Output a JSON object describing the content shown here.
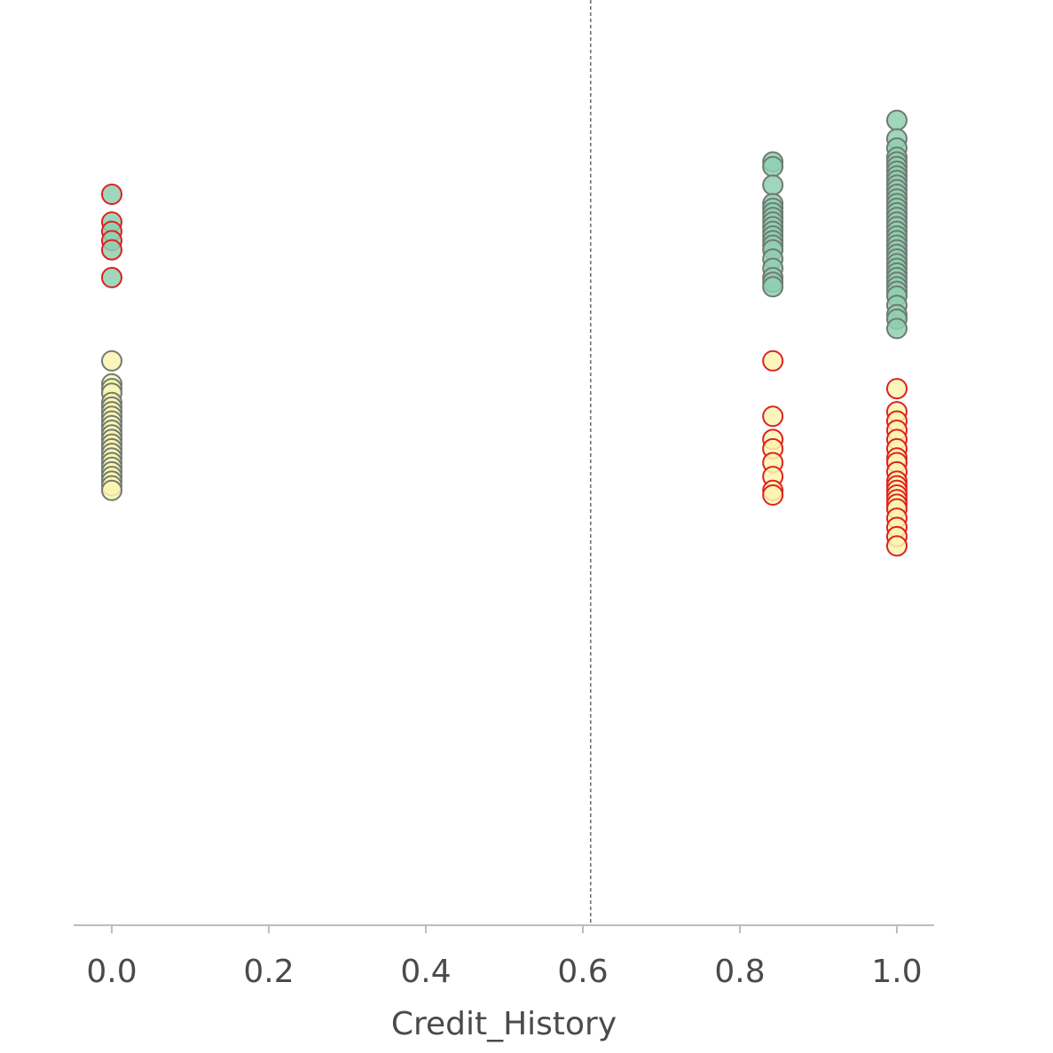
{
  "chart_data": {
    "type": "scatter",
    "xlabel": "Credit_History",
    "xlim": [
      -0.05,
      1.05
    ],
    "x_ticks": [
      {
        "value": 0.0,
        "label": "0.0"
      },
      {
        "value": 0.2,
        "label": "0.2"
      },
      {
        "value": 0.4,
        "label": "0.4"
      },
      {
        "value": 0.6,
        "label": "0.6"
      },
      {
        "value": 0.8,
        "label": "0.8"
      },
      {
        "value": 1.0,
        "label": "1.0"
      }
    ],
    "y_axis_shown": false,
    "ylim": [
      0,
      1
    ],
    "grid": false,
    "reference_line": {
      "x": 0.61,
      "style": "dashed",
      "color": "#444444"
    },
    "colors": {
      "green_fill": "#8fcfb0",
      "yellow_fill": "#fbf5b0",
      "gray_edge": "#6f7a72",
      "red_edge": "#dd2222"
    },
    "series": [
      {
        "fill": "green",
        "edge": "red",
        "points": [
          [
            0.0,
            0.79
          ],
          [
            0.0,
            0.76
          ],
          [
            0.0,
            0.75
          ],
          [
            0.0,
            0.74
          ],
          [
            0.0,
            0.73
          ],
          [
            0.0,
            0.7
          ]
        ]
      },
      {
        "fill": "yellow",
        "edge": "gray",
        "points": [
          [
            0.0,
            0.61
          ],
          [
            0.0,
            0.585
          ],
          [
            0.0,
            0.58
          ],
          [
            0.0,
            0.575
          ],
          [
            0.0,
            0.565
          ],
          [
            0.0,
            0.56
          ],
          [
            0.0,
            0.555
          ],
          [
            0.0,
            0.55
          ],
          [
            0.0,
            0.545
          ],
          [
            0.0,
            0.54
          ],
          [
            0.0,
            0.535
          ],
          [
            0.0,
            0.53
          ],
          [
            0.0,
            0.525
          ],
          [
            0.0,
            0.52
          ],
          [
            0.0,
            0.515
          ],
          [
            0.0,
            0.51
          ],
          [
            0.0,
            0.505
          ],
          [
            0.0,
            0.5
          ],
          [
            0.0,
            0.495
          ],
          [
            0.0,
            0.49
          ],
          [
            0.0,
            0.485
          ],
          [
            0.0,
            0.48
          ],
          [
            0.0,
            0.475
          ],
          [
            0.0,
            0.47
          ]
        ]
      },
      {
        "fill": "green",
        "edge": "gray",
        "points": [
          [
            0.842,
            0.825
          ],
          [
            0.842,
            0.82
          ],
          [
            0.842,
            0.8
          ],
          [
            0.842,
            0.78
          ],
          [
            0.842,
            0.775
          ],
          [
            0.842,
            0.77
          ],
          [
            0.842,
            0.765
          ],
          [
            0.842,
            0.76
          ],
          [
            0.842,
            0.755
          ],
          [
            0.842,
            0.75
          ],
          [
            0.842,
            0.745
          ],
          [
            0.842,
            0.74
          ],
          [
            0.842,
            0.735
          ],
          [
            0.842,
            0.73
          ],
          [
            0.842,
            0.72
          ],
          [
            0.842,
            0.71
          ],
          [
            0.842,
            0.7
          ],
          [
            0.842,
            0.695
          ],
          [
            0.842,
            0.69
          ],
          [
            1.0,
            0.87
          ],
          [
            1.0,
            0.85
          ],
          [
            1.0,
            0.84
          ],
          [
            1.0,
            0.83
          ],
          [
            1.0,
            0.825
          ],
          [
            1.0,
            0.82
          ],
          [
            1.0,
            0.815
          ],
          [
            1.0,
            0.81
          ],
          [
            1.0,
            0.805
          ],
          [
            1.0,
            0.8
          ],
          [
            1.0,
            0.795
          ],
          [
            1.0,
            0.79
          ],
          [
            1.0,
            0.785
          ],
          [
            1.0,
            0.78
          ],
          [
            1.0,
            0.775
          ],
          [
            1.0,
            0.77
          ],
          [
            1.0,
            0.765
          ],
          [
            1.0,
            0.76
          ],
          [
            1.0,
            0.755
          ],
          [
            1.0,
            0.75
          ],
          [
            1.0,
            0.745
          ],
          [
            1.0,
            0.74
          ],
          [
            1.0,
            0.735
          ],
          [
            1.0,
            0.73
          ],
          [
            1.0,
            0.725
          ],
          [
            1.0,
            0.72
          ],
          [
            1.0,
            0.715
          ],
          [
            1.0,
            0.71
          ],
          [
            1.0,
            0.705
          ],
          [
            1.0,
            0.7
          ],
          [
            1.0,
            0.695
          ],
          [
            1.0,
            0.69
          ],
          [
            1.0,
            0.685
          ],
          [
            1.0,
            0.68
          ],
          [
            1.0,
            0.67
          ],
          [
            1.0,
            0.66
          ],
          [
            1.0,
            0.655
          ],
          [
            1.0,
            0.645
          ]
        ]
      },
      {
        "fill": "yellow",
        "edge": "red",
        "points": [
          [
            0.842,
            0.61
          ],
          [
            0.842,
            0.55
          ],
          [
            0.842,
            0.525
          ],
          [
            0.842,
            0.515
          ],
          [
            0.842,
            0.5
          ],
          [
            0.842,
            0.485
          ],
          [
            0.842,
            0.47
          ],
          [
            0.842,
            0.465
          ],
          [
            1.0,
            0.58
          ],
          [
            1.0,
            0.555
          ],
          [
            1.0,
            0.545
          ],
          [
            1.0,
            0.535
          ],
          [
            1.0,
            0.525
          ],
          [
            1.0,
            0.515
          ],
          [
            1.0,
            0.505
          ],
          [
            1.0,
            0.5
          ],
          [
            1.0,
            0.49
          ],
          [
            1.0,
            0.48
          ],
          [
            1.0,
            0.475
          ],
          [
            1.0,
            0.47
          ],
          [
            1.0,
            0.465
          ],
          [
            1.0,
            0.46
          ],
          [
            1.0,
            0.455
          ],
          [
            1.0,
            0.45
          ],
          [
            1.0,
            0.44
          ],
          [
            1.0,
            0.43
          ],
          [
            1.0,
            0.42
          ],
          [
            1.0,
            0.41
          ]
        ]
      }
    ]
  }
}
